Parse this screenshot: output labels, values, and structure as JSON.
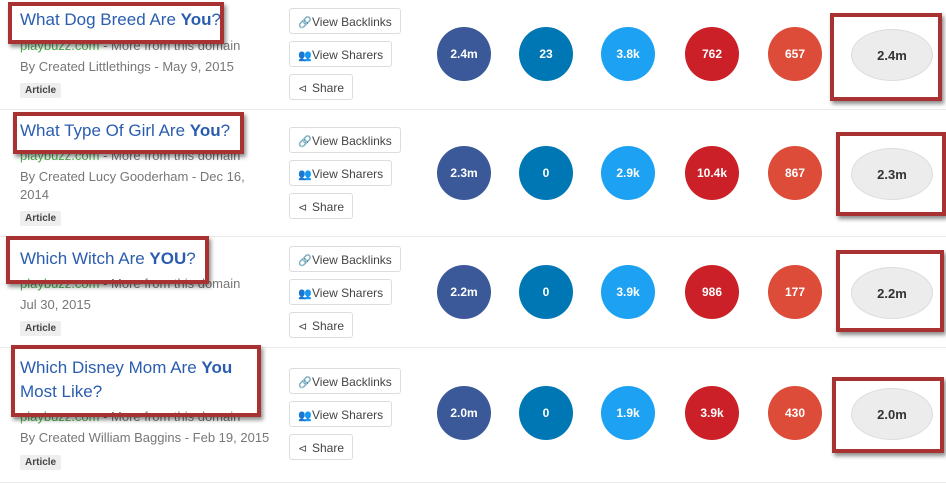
{
  "actions": {
    "backlinks": "View Backlinks",
    "sharers": "View Sharers",
    "share": "Share"
  },
  "colors": {
    "facebook": "#3b5998",
    "linkedin": "#0077b5",
    "twitter": "#1da1f2",
    "pinterest": "#cb2027",
    "google": "#dd4b39",
    "total": "#ececec",
    "highlight": "#a83232"
  },
  "rows": [
    {
      "title_pre": "What Dog Breed Are ",
      "title_bold": "You",
      "title_post": "?",
      "domain": "playbuzz.com",
      "more": " - More from this domain",
      "byline": "By Created Littlethings - May 9, 2015",
      "tag": "Article",
      "stats": [
        "2.4m",
        "23",
        "3.8k",
        "762",
        "657"
      ],
      "total": "2.4m"
    },
    {
      "title_pre": "What Type Of Girl Are ",
      "title_bold": "You",
      "title_post": "?",
      "domain": "playbuzz.com",
      "more": " - More from this domain",
      "byline": "By Created Lucy Gooderham - Dec 16, 2014",
      "tag": "Article",
      "stats": [
        "2.3m",
        "0",
        "2.9k",
        "10.4k",
        "867"
      ],
      "total": "2.3m"
    },
    {
      "title_pre": "Which Witch Are ",
      "title_bold": "YOU",
      "title_post": "?",
      "domain": "playbuzz.com",
      "more": " - More from this domain",
      "byline": "Jul 30, 2015",
      "tag": "Article",
      "stats": [
        "2.2m",
        "0",
        "3.9k",
        "986",
        "177"
      ],
      "total": "2.2m"
    },
    {
      "title_pre": "Which Disney Mom Are ",
      "title_bold": "You",
      "title_post": " Most Like?",
      "domain": "playbuzz.com",
      "more": " - More from this domain",
      "byline": "By Created William Baggins - Feb 19, 2015",
      "tag": "Article",
      "stats": [
        "2.0m",
        "0",
        "1.9k",
        "3.9k",
        "430"
      ],
      "total": "2.0m"
    }
  ]
}
